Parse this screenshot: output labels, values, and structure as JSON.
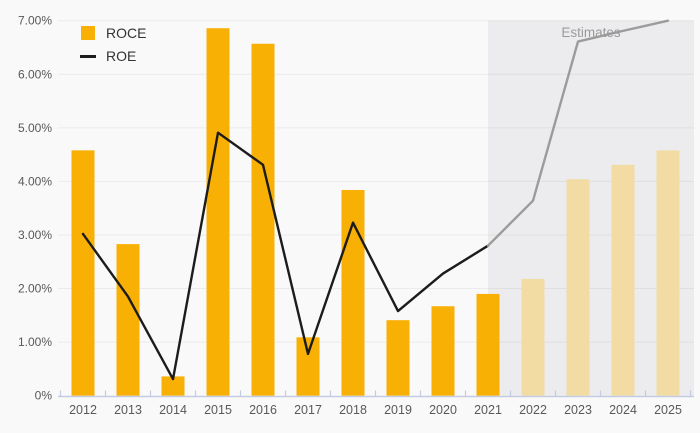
{
  "chart_data": {
    "type": "bar+line",
    "categories": [
      "2012",
      "2013",
      "2014",
      "2015",
      "2016",
      "2017",
      "2018",
      "2019",
      "2020",
      "2021",
      "2022",
      "2023",
      "2024",
      "2025"
    ],
    "series": [
      {
        "name": "ROCE",
        "type": "bar",
        "values": [
          4.58,
          2.83,
          0.36,
          6.86,
          6.57,
          1.09,
          3.84,
          1.41,
          1.67,
          1.9,
          2.18,
          4.04,
          4.31,
          4.58
        ],
        "color": "#f9b005",
        "estimate_color": "#f2dca4"
      },
      {
        "name": "ROE",
        "type": "line",
        "values": [
          3.02,
          1.85,
          0.31,
          4.91,
          4.31,
          0.78,
          3.23,
          1.58,
          2.28,
          2.8,
          3.64,
          6.61,
          6.81,
          7.0
        ],
        "color": "#1c1c1c",
        "estimate_color": "#9b9b9b"
      }
    ],
    "y_axis": {
      "min": 0,
      "max": 7,
      "tick_step": 1,
      "tick_labels": [
        "0%",
        "1.00%",
        "2.00%",
        "3.00%",
        "4.00%",
        "5.00%",
        "6.00%",
        "7.00%"
      ]
    },
    "x_axis": {
      "tick_labels": [
        "2012",
        "2013",
        "2014",
        "2015",
        "2016",
        "2017",
        "2018",
        "2019",
        "2020",
        "2021",
        "2022",
        "2023",
        "2024",
        "2025"
      ]
    },
    "estimates": {
      "label": "Estimates",
      "region_start_category": "2021",
      "first_estimate_bar_category": "2022"
    },
    "grid": true,
    "legend_position": "top-left"
  },
  "legend": {
    "items": [
      {
        "label": "ROCE"
      },
      {
        "label": "ROE"
      }
    ]
  },
  "colors": {
    "background": "#f9f9f9",
    "estimates_region": "#ececee",
    "gridline": "rgba(0,0,0,0.055)",
    "axis_line": "#c3cbe2",
    "tick_text": "#595959",
    "legend_text": "#333333",
    "estimates_text": "#9a9a9a"
  }
}
